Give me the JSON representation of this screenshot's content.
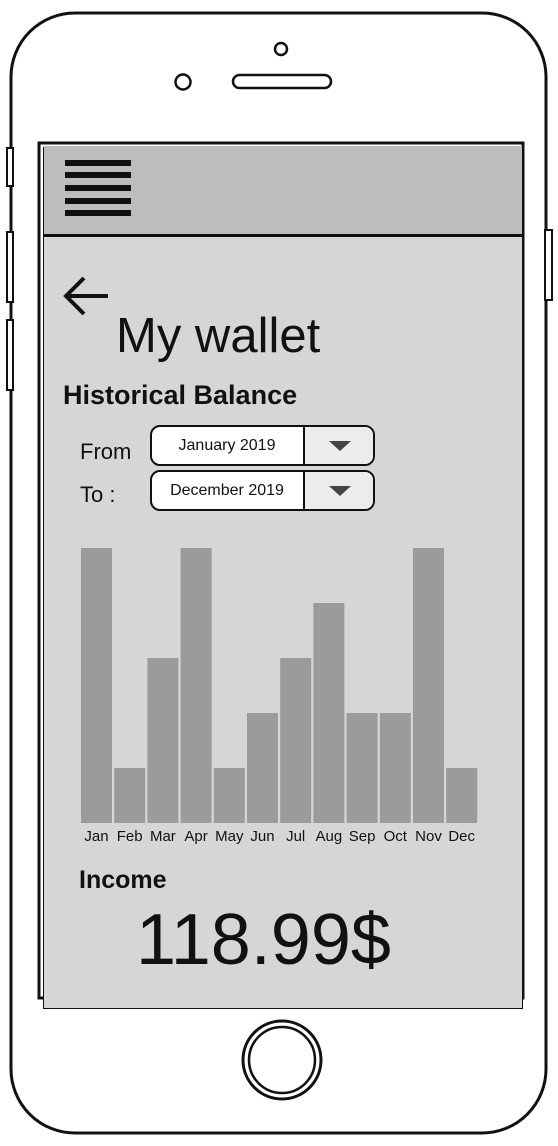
{
  "page": {
    "title": "My wallet",
    "section_title": "Historical Balance"
  },
  "filters": {
    "from_label": "From",
    "to_label": "To :",
    "from_value": "January 2019",
    "to_value": "December 2019"
  },
  "chart_data": {
    "type": "bar",
    "categories": [
      "Jan",
      "Feb",
      "Mar",
      "Apr",
      "May",
      "Jun",
      "Jul",
      "Aug",
      "Sep",
      "Oct",
      "Nov",
      "Dec"
    ],
    "values": [
      5,
      1,
      3,
      5,
      1,
      2,
      3,
      4,
      2,
      2,
      5,
      1
    ],
    "ylim": [
      0,
      5
    ],
    "bar_color": "#9b9b9b",
    "grid": false
  },
  "income": {
    "label": "Income",
    "value": "118.99$"
  },
  "icons": {
    "menu": "hamburger-menu-icon",
    "back": "back-arrow-icon",
    "dropdown": "triangle-down-icon"
  },
  "colors": {
    "screen_bg": "#d6d6d6",
    "topbar_bg": "#bdbdbd",
    "bar": "#9b9b9b"
  }
}
